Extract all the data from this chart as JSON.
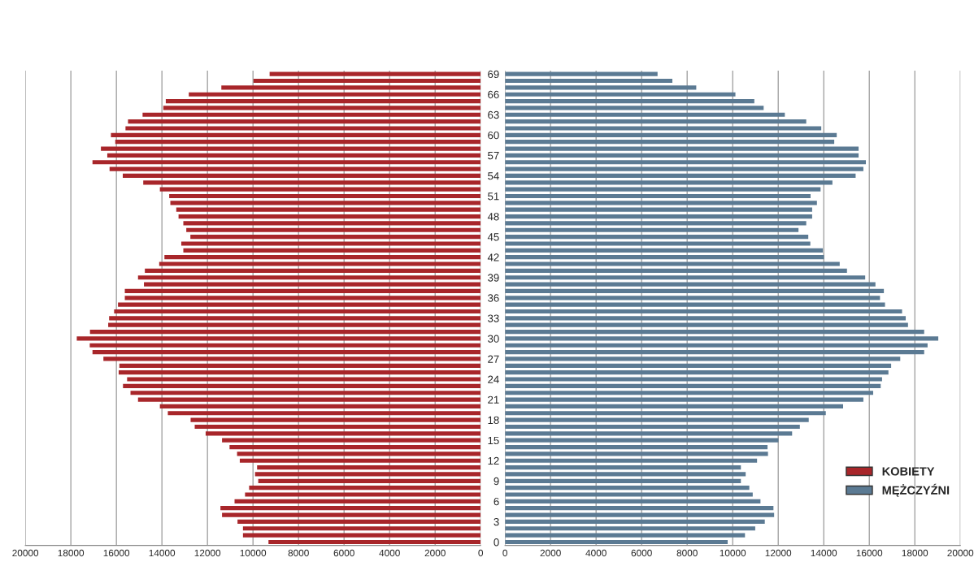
{
  "chart_data": [
    {
      "type": "bar",
      "orientation": "horizontal",
      "tick_labels": "x",
      "grid": "x",
      "categories": [
        "69",
        null,
        null,
        "66",
        null,
        null,
        "63",
        null,
        null,
        "60",
        null,
        null,
        "57",
        null,
        null,
        "54",
        null,
        null,
        "51",
        null,
        null,
        "48",
        null,
        null,
        "45",
        null,
        null,
        "42",
        null,
        null,
        "39",
        null,
        null,
        "36",
        null,
        null,
        "33",
        null,
        null,
        "30",
        null,
        null,
        "27",
        null,
        null,
        "24",
        null,
        null,
        "21",
        null,
        null,
        "18",
        null,
        null,
        "15",
        null,
        null,
        "12",
        null,
        null,
        "9",
        null,
        null,
        "6",
        null,
        null,
        "3",
        null,
        null,
        "0"
      ],
      "series": [
        {
          "name": "KOBIETY",
          "color": "#a8262a",
          "values": [
            9270,
            9980,
            11390,
            12820,
            13830,
            13940,
            14850,
            15490,
            15600,
            16240,
            16050,
            16680,
            16400,
            17050,
            16300,
            15720,
            14820,
            14090,
            13680,
            13630,
            13370,
            13270,
            13060,
            12930,
            12750,
            13150,
            13060,
            13890,
            14120,
            14750,
            15050,
            14790,
            15630,
            15630,
            15930,
            16100,
            16320,
            16360,
            17160,
            17740,
            17170,
            17050,
            16570,
            15870,
            15900,
            15530,
            15710,
            15380,
            15050,
            14090,
            13740,
            12740,
            12560,
            12080,
            11360,
            11030,
            10700,
            10580,
            9820,
            9910,
            9770,
            10170,
            10350,
            10810,
            11430,
            11360,
            10680,
            10440,
            10440,
            9320
          ]
        }
      ],
      "xlim": [
        20000,
        0
      ],
      "xticks": [
        20000,
        18000,
        16000,
        14000,
        12000,
        10000,
        8000,
        6000,
        4000,
        2000,
        0
      ]
    },
    {
      "type": "bar",
      "orientation": "horizontal",
      "grid": "x",
      "legend": "bottom right",
      "categories": [
        "69",
        null,
        null,
        "66",
        null,
        null,
        "63",
        null,
        null,
        "60",
        null,
        null,
        "57",
        null,
        null,
        "54",
        null,
        null,
        "51",
        null,
        null,
        "48",
        null,
        null,
        "45",
        null,
        null,
        "42",
        null,
        null,
        "39",
        null,
        null,
        "36",
        null,
        null,
        "33",
        null,
        null,
        "30",
        null,
        null,
        "27",
        null,
        null,
        "24",
        null,
        null,
        "21",
        null,
        null,
        "18",
        null,
        null,
        "15",
        null,
        null,
        "12",
        null,
        null,
        "9",
        null,
        null,
        "6",
        null,
        null,
        "3",
        null,
        null,
        "0"
      ],
      "series": [
        {
          "name": "MĘŻCZYŹNI",
          "color": "#5b7a93",
          "values": [
            6700,
            7350,
            8400,
            10120,
            10950,
            11360,
            12290,
            13230,
            13890,
            14570,
            14460,
            15530,
            15530,
            15850,
            15740,
            15400,
            14380,
            13860,
            13420,
            13700,
            13490,
            13490,
            13230,
            12890,
            13320,
            13410,
            13960,
            14010,
            14700,
            15020,
            15820,
            16270,
            16640,
            16470,
            16690,
            17440,
            17600,
            17700,
            18410,
            19030,
            18560,
            18410,
            17360,
            16960,
            16840,
            16560,
            16500,
            16170,
            15740,
            14850,
            14090,
            13340,
            12950,
            12610,
            12010,
            11530,
            11550,
            11070,
            10360,
            10570,
            10360,
            10730,
            10880,
            11220,
            11790,
            11820,
            11410,
            10990,
            10540,
            9780
          ]
        }
      ],
      "xlim": [
        0,
        20000
      ],
      "xticks": [
        0,
        2000,
        4000,
        6000,
        8000,
        10000,
        12000,
        14000,
        16000,
        18000,
        20000
      ]
    }
  ]
}
